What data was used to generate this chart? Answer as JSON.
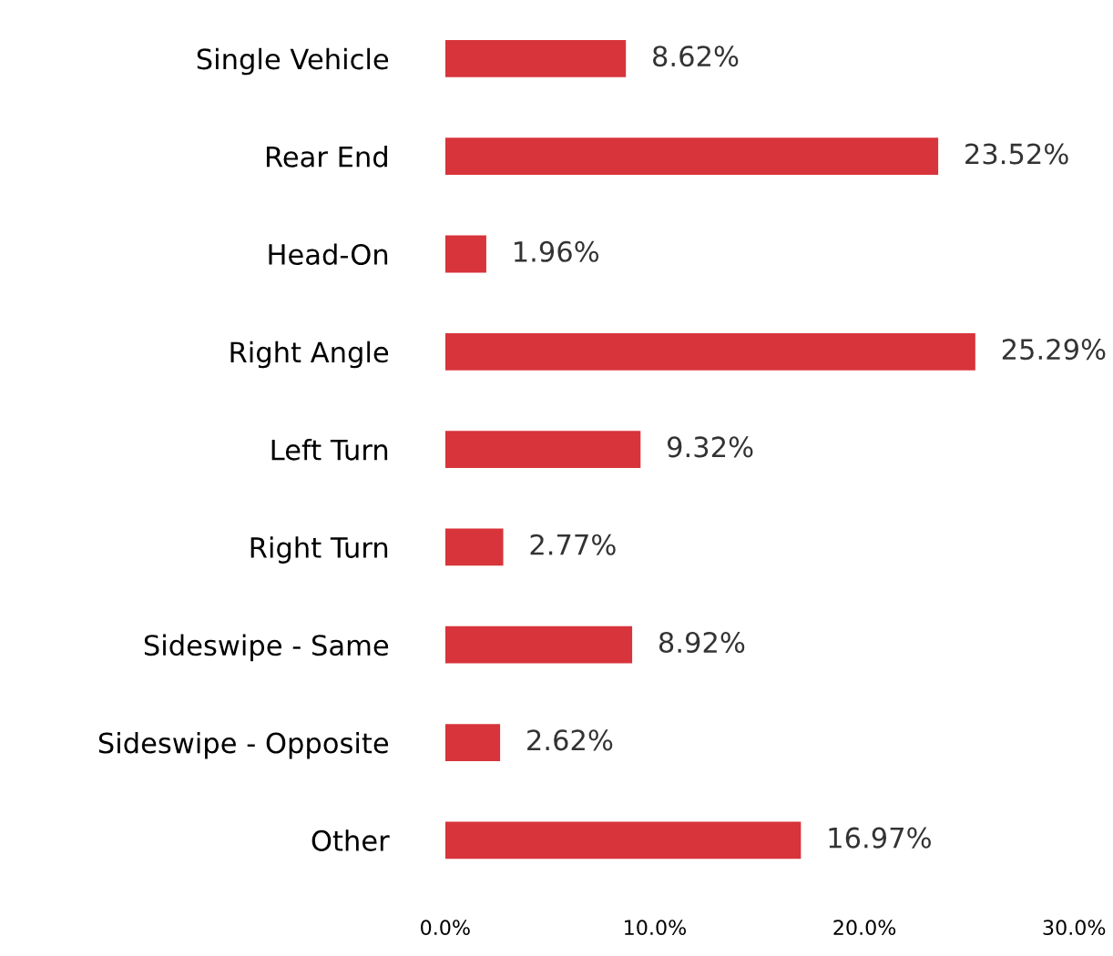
{
  "chart_data": {
    "type": "bar",
    "orientation": "horizontal",
    "categories": [
      "Single Vehicle",
      "Rear End",
      "Head-On",
      "Right Angle",
      "Left Turn",
      "Right Turn",
      "Sideswipe - Same",
      "Sideswipe - Opposite",
      "Other"
    ],
    "values": [
      8.62,
      23.52,
      1.96,
      25.29,
      9.32,
      2.77,
      8.92,
      2.62,
      16.97
    ],
    "value_labels": [
      "8.62%",
      "23.52%",
      "1.96%",
      "25.29%",
      "9.32%",
      "2.77%",
      "8.92%",
      "2.62%",
      "16.97%"
    ],
    "color": "#d8343b",
    "xlim": [
      0,
      30
    ],
    "xticks": [
      {
        "value": 0,
        "label": "0.0%"
      },
      {
        "value": 10,
        "label": "10.0%"
      },
      {
        "value": 20,
        "label": "20.0%"
      },
      {
        "value": 30,
        "label": "30.0%"
      }
    ],
    "grid": false,
    "legend": false
  }
}
